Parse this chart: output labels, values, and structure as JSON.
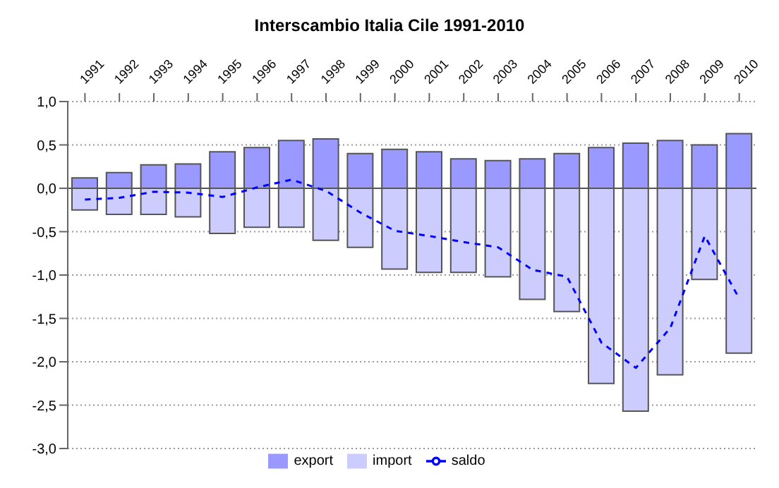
{
  "chart_data": {
    "type": "bar",
    "title": "Interscambio Italia Cile 1991-2010",
    "stacked": true,
    "categories": [
      "1991",
      "1992",
      "1993",
      "1994",
      "1995",
      "1996",
      "1997",
      "1998",
      "1999",
      "2000",
      "2001",
      "2002",
      "2003",
      "2004",
      "2005",
      "2006",
      "2007",
      "2008",
      "2009",
      "2010"
    ],
    "series": [
      {
        "name": "export",
        "color": "#9999ff",
        "values": [
          0.12,
          0.18,
          0.27,
          0.28,
          0.42,
          0.47,
          0.55,
          0.57,
          0.4,
          0.45,
          0.42,
          0.34,
          0.32,
          0.34,
          0.4,
          0.47,
          0.52,
          0.55,
          0.5,
          0.63
        ]
      },
      {
        "name": "import",
        "color": "#ccccff",
        "values": [
          -0.25,
          -0.3,
          -0.3,
          -0.33,
          -0.52,
          -0.45,
          -0.45,
          -0.6,
          -0.68,
          -0.93,
          -0.97,
          -0.97,
          -1.02,
          -1.28,
          -1.42,
          -2.25,
          -2.57,
          -2.15,
          -1.05,
          -1.9
        ]
      },
      {
        "name": "saldo",
        "type": "line",
        "color": "#0000ff",
        "line_style": "dashed",
        "marker": "none",
        "values": [
          -0.13,
          -0.11,
          -0.04,
          -0.05,
          -0.1,
          0.01,
          0.1,
          -0.03,
          -0.28,
          -0.49,
          -0.55,
          -0.62,
          -0.68,
          -0.94,
          -1.02,
          -1.78,
          -2.07,
          -1.61,
          -0.55,
          -1.27
        ]
      }
    ],
    "ylim": [
      -3,
      1
    ],
    "yticks": [
      {
        "value": -3,
        "label": "-3,0"
      },
      {
        "value": -2.5,
        "label": "-2,5"
      },
      {
        "value": -2,
        "label": "-2,0"
      },
      {
        "value": -1.5,
        "label": "-1,5"
      },
      {
        "value": -1,
        "label": "-1,0"
      },
      {
        "value": -0.5,
        "label": "-0,5"
      },
      {
        "value": 0,
        "label": "0,0"
      },
      {
        "value": 0.5,
        "label": "0,5"
      },
      {
        "value": 1,
        "label": "1,0"
      }
    ],
    "grid": "y",
    "legend": "bottom"
  }
}
